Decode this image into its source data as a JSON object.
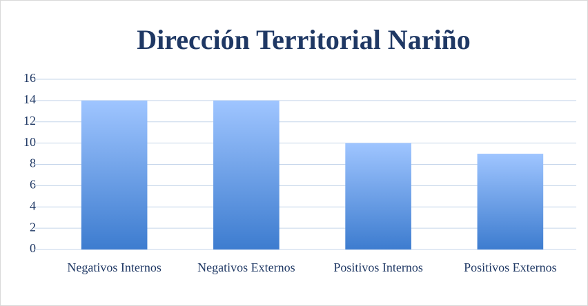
{
  "chart_data": {
    "type": "bar",
    "title": "Dirección Territorial Nariño",
    "categories": [
      "Negativos Internos",
      "Negativos Externos",
      "Positivos Internos",
      "Positivos Externos"
    ],
    "values": [
      14,
      14,
      10,
      9
    ],
    "color": "#4a86d8",
    "ylim": [
      0,
      16
    ],
    "yticks": [
      0,
      2,
      4,
      6,
      8,
      10,
      12,
      14,
      16
    ],
    "grid": true
  }
}
